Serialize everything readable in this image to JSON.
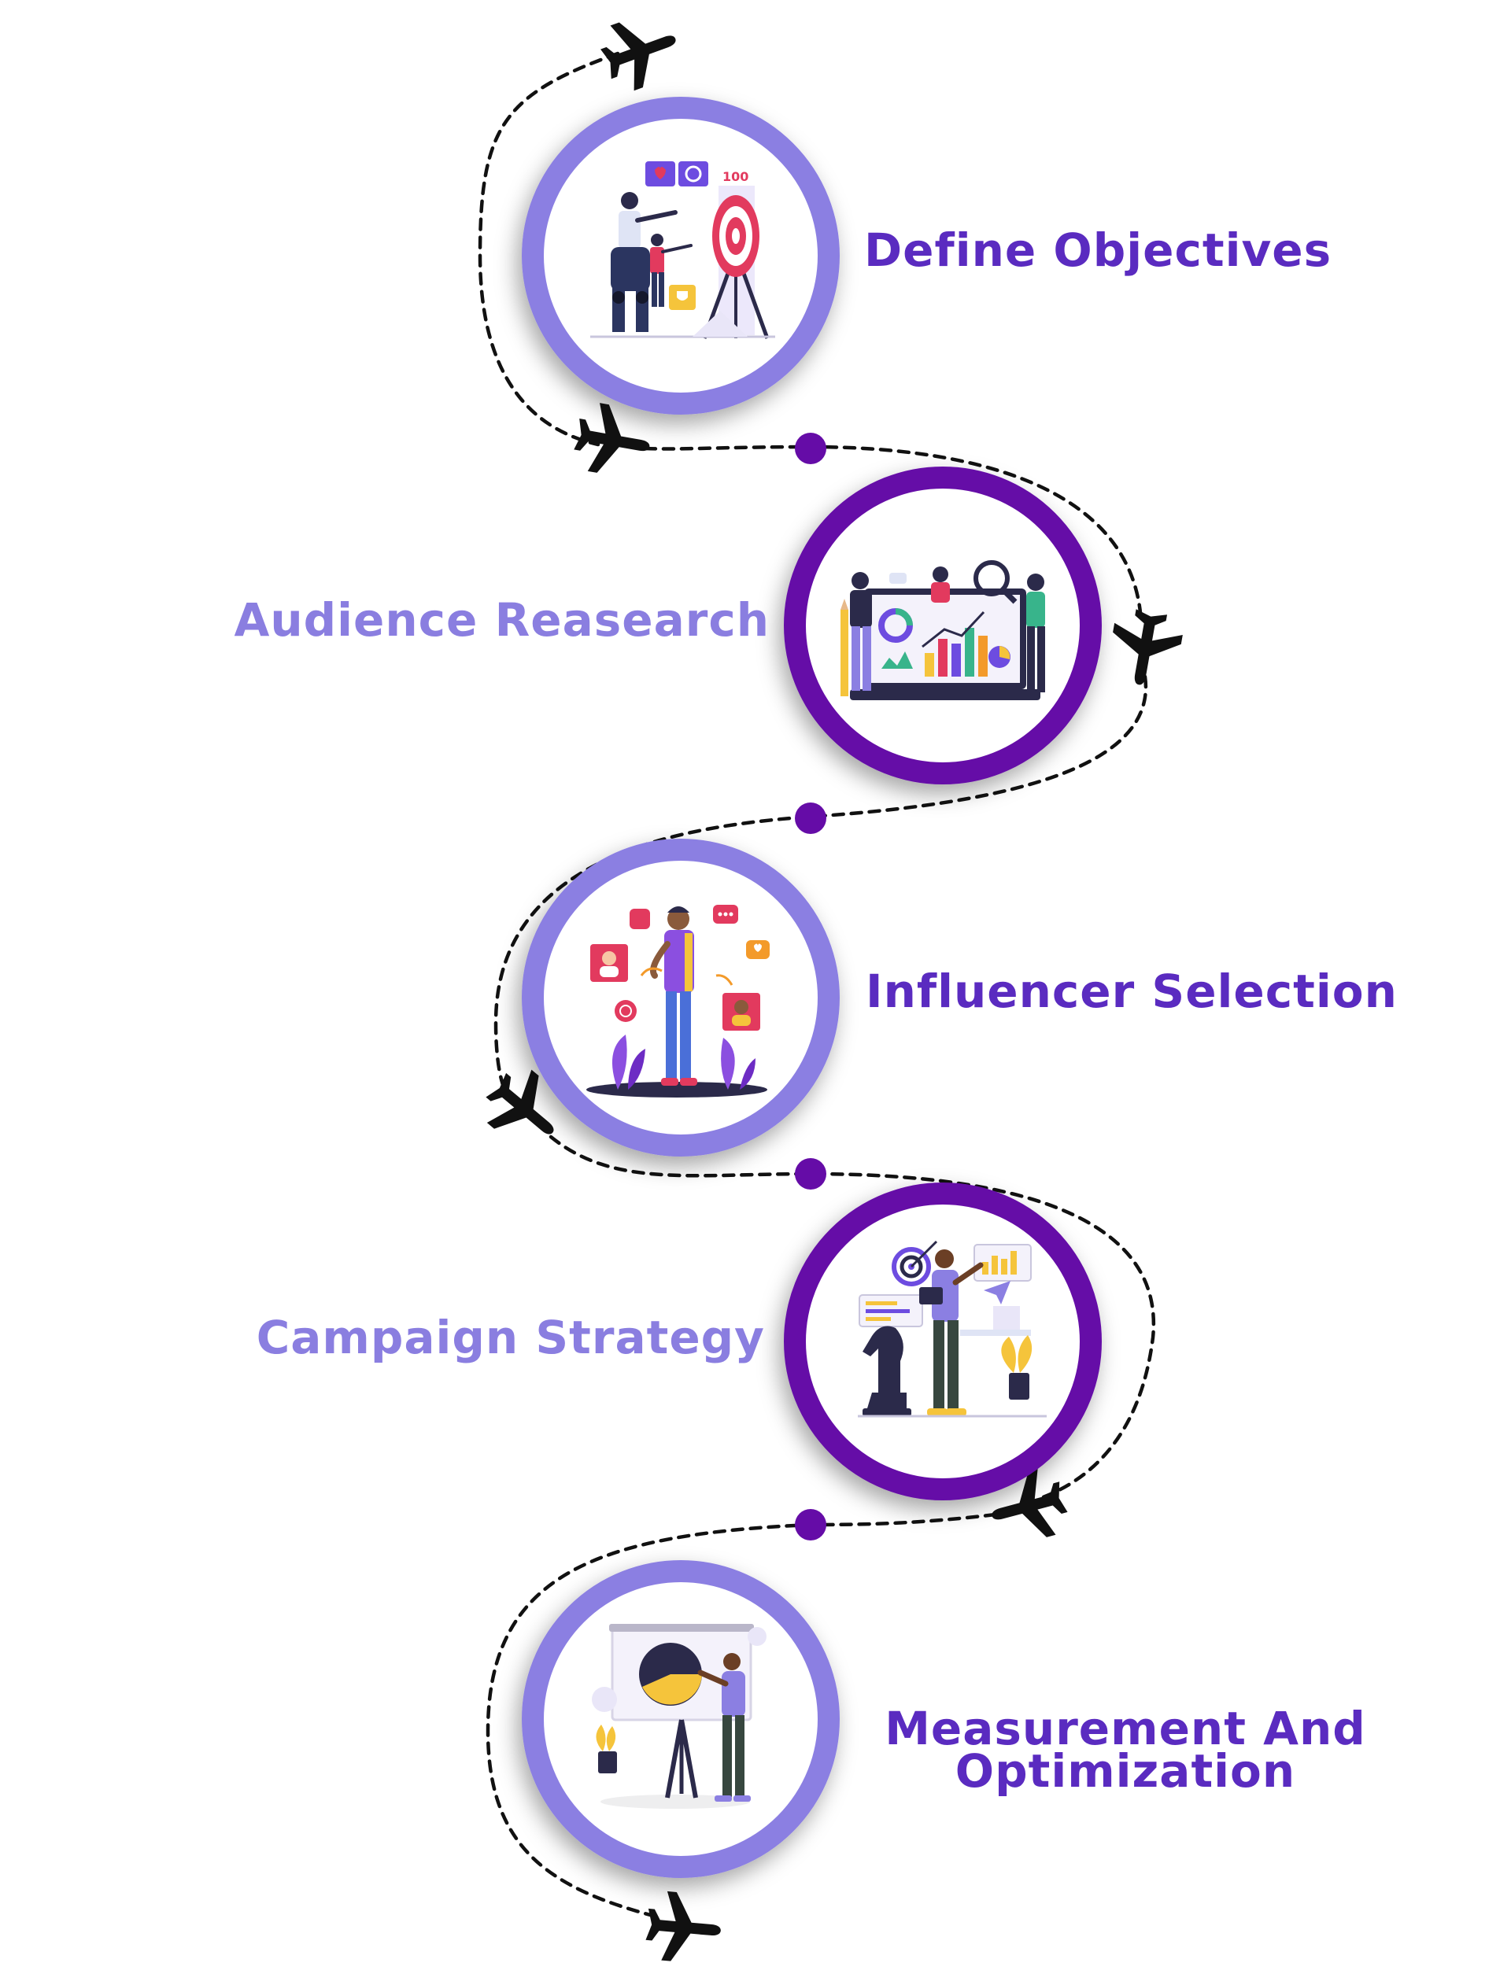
{
  "colors": {
    "ring_light": "#8b7fe2",
    "ring_dark": "#650ca7",
    "label_dark": "#5a2bc0",
    "label_light": "#8a7ee0",
    "dot": "#650ca7",
    "path": "#111111",
    "plane": "#111111"
  },
  "steps": [
    {
      "label": "Define Objectives",
      "illustration": "archery-target-illustration",
      "ring": "light"
    },
    {
      "label": "Audience Reasearch",
      "illustration": "data-analysis-team-illustration",
      "ring": "dark"
    },
    {
      "label": "Influencer Selection",
      "illustration": "social-media-influencer-illustration",
      "ring": "light"
    },
    {
      "label": "Campaign Strategy",
      "illustration": "chess-strategy-illustration",
      "ring": "dark"
    },
    {
      "label": "Measurement And Optimization",
      "illustration": "pie-chart-presentation-illustration",
      "ring": "light"
    }
  ]
}
